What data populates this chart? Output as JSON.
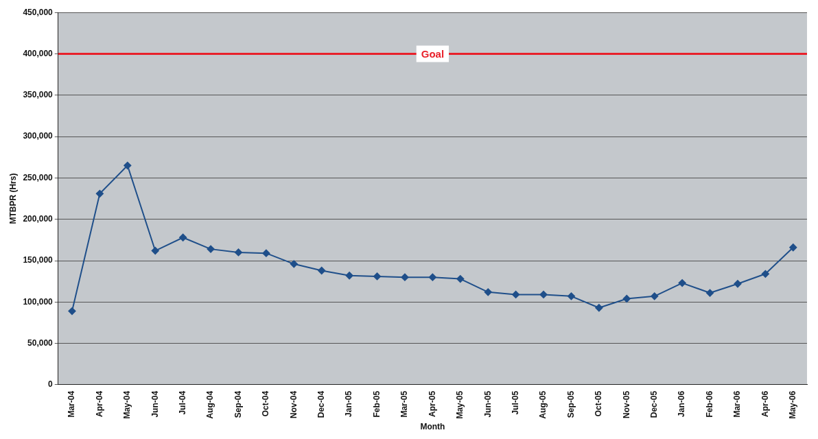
{
  "chart_data": {
    "type": "line",
    "xlabel": "Month",
    "ylabel": "MTBPR (Hrs)",
    "categories": [
      "Mar-04",
      "Apr-04",
      "May-04",
      "Jun-04",
      "Jul-04",
      "Aug-04",
      "Sep-04",
      "Oct-04",
      "Nov-04",
      "Dec-04",
      "Jan-05",
      "Feb-05",
      "Mar-05",
      "Apr-05",
      "May-05",
      "Jun-05",
      "Jul-05",
      "Aug-05",
      "Sep-05",
      "Oct-05",
      "Nov-05",
      "Dec-05",
      "Jan-06",
      "Feb-06",
      "Mar-06",
      "Apr-06",
      "May-06"
    ],
    "series": [
      {
        "color": "#1f4f8a",
        "values": [
          89000,
          231000,
          265000,
          162000,
          178000,
          164000,
          160000,
          159000,
          146000,
          138000,
          132000,
          131000,
          130000,
          130000,
          128000,
          112000,
          109000,
          109000,
          107000,
          93000,
          104000,
          107000,
          123000,
          111000,
          122000,
          134000,
          166000
        ]
      }
    ],
    "ylim": [
      0,
      450000
    ],
    "yticks": [
      0,
      {
        "value": 50000,
        "label": "50,000"
      },
      {
        "value": 100000,
        "label": "100,000"
      },
      {
        "value": 150000,
        "label": "150,000"
      },
      {
        "value": 200000,
        "label": "200,000"
      },
      {
        "value": 250000,
        "label": "250,000"
      },
      {
        "value": 300000,
        "label": "300,000"
      },
      {
        "value": 350000,
        "label": "350,000"
      },
      {
        "value": 400000,
        "label": "400,000"
      },
      {
        "value": 450000,
        "label": "450,000"
      }
    ],
    "grid": "y",
    "legend": false,
    "marker": "diamond",
    "line_style": "solid",
    "ref_lines": [
      {
        "axis": "y",
        "value": 400000,
        "label": "Goal",
        "color": "#e8202a"
      }
    ]
  }
}
